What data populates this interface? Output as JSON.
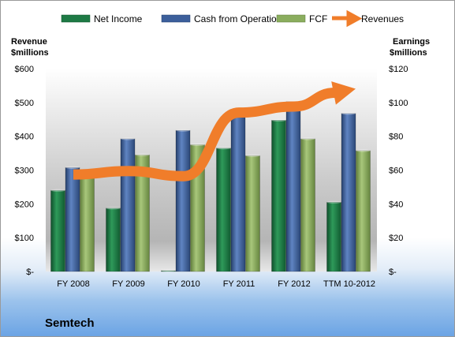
{
  "chart_data": {
    "type": "bar",
    "title": "Semtech",
    "categories": [
      "FY 2008",
      "FY 2009",
      "FY 2010",
      "FY 2011",
      "FY 2012",
      "TTM 10-2012"
    ],
    "series": [
      {
        "name": "Net Income",
        "axis": "right",
        "values": [
          48,
          37.5,
          0.5,
          73,
          89.5,
          41
        ],
        "color": "#1e7a45"
      },
      {
        "name": "Cash from Operations",
        "axis": "right",
        "values": [
          61.5,
          78.5,
          83.5,
          94.5,
          100.5,
          93.5
        ],
        "color": "#3c5f9b"
      },
      {
        "name": "FCF",
        "axis": "right",
        "values": [
          57.5,
          69,
          75,
          68.5,
          78.5,
          71.5
        ],
        "color": "#8aad5e"
      }
    ],
    "line_series": {
      "name": "Revenues",
      "axis": "left",
      "style": "arrow",
      "values": [
        287,
        297,
        282,
        470,
        488,
        537
      ],
      "color": "#f07d2a"
    },
    "left_axis": {
      "label_line1": "Revenue",
      "label_line2": "$millions",
      "ylim": [
        0,
        600
      ],
      "ticks": [
        0,
        100,
        200,
        300,
        400,
        500,
        600
      ],
      "tick_labels": [
        "$-",
        "$100",
        "$200",
        "$300",
        "$400",
        "$500",
        "$600"
      ]
    },
    "right_axis": {
      "label_line1": "Earnings",
      "label_line2": "$millions",
      "ylim": [
        0,
        120
      ],
      "ticks": [
        0,
        20,
        40,
        60,
        80,
        100,
        120
      ],
      "tick_labels": [
        "$-",
        "$20",
        "$40",
        "$60",
        "$80",
        "$100",
        "$120"
      ]
    },
    "legend_position": "top",
    "grid": false
  }
}
